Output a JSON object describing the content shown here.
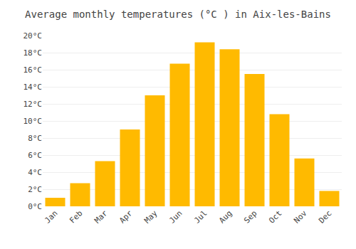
{
  "chart_data": {
    "type": "bar",
    "title": "Average monthly temperatures (°C ) in Aix-les-Bains",
    "categories": [
      "Jan",
      "Feb",
      "Mar",
      "Apr",
      "May",
      "Jun",
      "Jul",
      "Aug",
      "Sep",
      "Oct",
      "Nov",
      "Dec"
    ],
    "values": [
      1.0,
      2.7,
      5.3,
      9.0,
      13.0,
      16.7,
      19.2,
      18.4,
      15.5,
      10.8,
      5.6,
      1.8
    ],
    "color": "#FFBA00",
    "ylim": [
      0,
      20
    ],
    "yticks": [
      {
        "value": 0,
        "label": "0°C"
      },
      {
        "value": 2,
        "label": "2°C"
      },
      {
        "value": 4,
        "label": "4°C"
      },
      {
        "value": 6,
        "label": "6°C"
      },
      {
        "value": 8,
        "label": "8°C"
      },
      {
        "value": 10,
        "label": "10°C"
      },
      {
        "value": 12,
        "label": "12°C"
      },
      {
        "value": 14,
        "label": "14°C"
      },
      {
        "value": 16,
        "label": "16°C"
      },
      {
        "value": 18,
        "label": "18°C"
      },
      {
        "value": 20,
        "label": "20°C"
      }
    ],
    "grid": true
  }
}
